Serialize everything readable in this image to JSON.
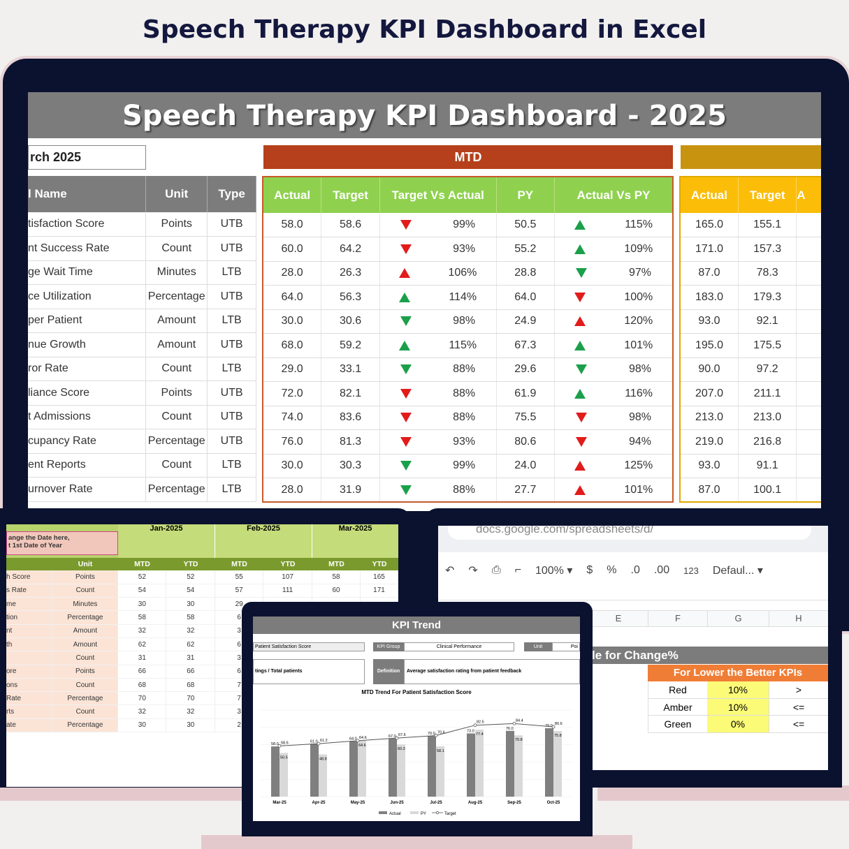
{
  "header": {
    "title": "Speech Therapy KPI Dashboard in Excel"
  },
  "dashboard": {
    "banner": "Speech Therapy KPI Dashboard - 2025",
    "month": "rch 2025",
    "mtd_label": "MTD",
    "left_headers": [
      "l Name",
      "Unit",
      "Type"
    ],
    "mtd_headers": [
      "Actual",
      "Target",
      "Target Vs Actual",
      "PY",
      "Actual Vs PY"
    ],
    "ytd_headers": [
      "Actual",
      "Target",
      "A"
    ],
    "rows": [
      {
        "name": "tisfaction Score",
        "unit": "Points",
        "type": "UTB",
        "actual": "58.0",
        "target": "58.6",
        "tva_dir": "dn-r",
        "tva": "99%",
        "py": "50.5",
        "avp_dir": "up-g",
        "avp": "115%",
        "y_actual": "165.0",
        "y_target": "155.1"
      },
      {
        "name": "nt Success Rate",
        "unit": "Count",
        "type": "UTB",
        "actual": "60.0",
        "target": "64.2",
        "tva_dir": "dn-r",
        "tva": "93%",
        "py": "55.2",
        "avp_dir": "up-g",
        "avp": "109%",
        "y_actual": "171.0",
        "y_target": "157.3"
      },
      {
        "name": "ge Wait Time",
        "unit": "Minutes",
        "type": "LTB",
        "actual": "28.0",
        "target": "26.3",
        "tva_dir": "up-r",
        "tva": "106%",
        "py": "28.8",
        "avp_dir": "dn-g",
        "avp": "97%",
        "y_actual": "87.0",
        "y_target": "78.3"
      },
      {
        "name": "ce Utilization",
        "unit": "Percentage",
        "type": "UTB",
        "actual": "64.0",
        "target": "56.3",
        "tva_dir": "up-g",
        "tva": "114%",
        "py": "64.0",
        "avp_dir": "dn-r",
        "avp": "100%",
        "y_actual": "183.0",
        "y_target": "179.3"
      },
      {
        "name": "per Patient",
        "unit": "Amount",
        "type": "LTB",
        "actual": "30.0",
        "target": "30.6",
        "tva_dir": "dn-g",
        "tva": "98%",
        "py": "24.9",
        "avp_dir": "up-r",
        "avp": "120%",
        "y_actual": "93.0",
        "y_target": "92.1"
      },
      {
        "name": "nue Growth",
        "unit": "Amount",
        "type": "UTB",
        "actual": "68.0",
        "target": "59.2",
        "tva_dir": "up-g",
        "tva": "115%",
        "py": "67.3",
        "avp_dir": "up-g",
        "avp": "101%",
        "y_actual": "195.0",
        "y_target": "175.5"
      },
      {
        "name": "ror Rate",
        "unit": "Count",
        "type": "LTB",
        "actual": "29.0",
        "target": "33.1",
        "tva_dir": "dn-g",
        "tva": "88%",
        "py": "29.6",
        "avp_dir": "dn-g",
        "avp": "98%",
        "y_actual": "90.0",
        "y_target": "97.2"
      },
      {
        "name": "liance Score",
        "unit": "Points",
        "type": "UTB",
        "actual": "72.0",
        "target": "82.1",
        "tva_dir": "dn-r",
        "tva": "88%",
        "py": "61.9",
        "avp_dir": "up-g",
        "avp": "116%",
        "y_actual": "207.0",
        "y_target": "211.1"
      },
      {
        "name": "t Admissions",
        "unit": "Count",
        "type": "UTB",
        "actual": "74.0",
        "target": "83.6",
        "tva_dir": "dn-r",
        "tva": "88%",
        "py": "75.5",
        "avp_dir": "dn-r",
        "avp": "98%",
        "y_actual": "213.0",
        "y_target": "213.0"
      },
      {
        "name": "cupancy Rate",
        "unit": "Percentage",
        "type": "UTB",
        "actual": "76.0",
        "target": "81.3",
        "tva_dir": "dn-r",
        "tva": "93%",
        "py": "80.6",
        "avp_dir": "dn-r",
        "avp": "94%",
        "y_actual": "219.0",
        "y_target": "216.8"
      },
      {
        "name": "ent Reports",
        "unit": "Count",
        "type": "LTB",
        "actual": "30.0",
        "target": "30.3",
        "tva_dir": "dn-g",
        "tva": "99%",
        "py": "24.0",
        "avp_dir": "up-r",
        "avp": "125%",
        "y_actual": "93.0",
        "y_target": "91.1"
      },
      {
        "name": "urnover Rate",
        "unit": "Percentage",
        "type": "LTB",
        "actual": "28.0",
        "target": "31.9",
        "tva_dir": "dn-g",
        "tva": "88%",
        "py": "27.7",
        "avp_dir": "up-r",
        "avp": "101%",
        "y_actual": "87.0",
        "y_target": "100.1"
      }
    ]
  },
  "sheet": {
    "callout": "ange the Date here,\nt 1st Date of Year",
    "unit_header": "Unit",
    "months": [
      "Jan-2025",
      "Feb-2025",
      "Mar-2025"
    ],
    "sub": [
      "MTD",
      "YTD",
      "MTD",
      "YTD",
      "MTD",
      "YTD"
    ],
    "rows": [
      [
        "h Score",
        "Points",
        "52",
        "52",
        "55",
        "107",
        "58",
        "165"
      ],
      [
        "s Rate",
        "Count",
        "54",
        "54",
        "57",
        "111",
        "60",
        "171"
      ],
      [
        "me",
        "Minutes",
        "30",
        "30",
        "29",
        "",
        "",
        ""
      ],
      [
        "tion",
        "Percentage",
        "58",
        "58",
        "6",
        "",
        "",
        ""
      ],
      [
        "nt",
        "Amount",
        "32",
        "32",
        "3",
        "",
        "",
        ""
      ],
      [
        "th",
        "Amount",
        "62",
        "62",
        "6",
        "",
        "",
        ""
      ],
      [
        "",
        "Count",
        "31",
        "31",
        "3",
        "",
        "",
        ""
      ],
      [
        "ore",
        "Points",
        "66",
        "66",
        "6",
        "",
        "",
        ""
      ],
      [
        "ons",
        "Count",
        "68",
        "68",
        "7",
        "",
        "",
        ""
      ],
      [
        "Rate",
        "Percentage",
        "70",
        "70",
        "7",
        "",
        "",
        ""
      ],
      [
        "rts",
        "Count",
        "32",
        "32",
        "3",
        "",
        "",
        ""
      ],
      [
        "ate",
        "Percentage",
        "30",
        "30",
        "2",
        "",
        "",
        ""
      ]
    ]
  },
  "gsheet": {
    "url": "docs.google.com/spreadsheets/d/",
    "zoom": "100%",
    "currency": "$",
    "percent": "%",
    "dec_less": ".0",
    "dec_more": ".00",
    "num": "123",
    "font": "Defaul...",
    "cols": [
      "E",
      "F",
      "G",
      "H"
    ],
    "rule_title": "le for Change%",
    "ltb_header": "For Lower the Better KPIs",
    "rules": [
      [
        "Red",
        "10%",
        ">"
      ],
      [
        "Amber",
        "10%",
        "<="
      ],
      [
        "Green",
        "0%",
        "<="
      ]
    ]
  },
  "trend": {
    "title": "KPI Trend",
    "kpi_name": "Patient Satisfaction Score",
    "kpi_group_label": "KPI Group",
    "kpi_group": "Clinical Performance",
    "unit_label": "Unit",
    "unit": "Poi",
    "formula": "tings / Total patients",
    "definition_label": "Definition",
    "definition": "Average satisfaction rating from patient feedback",
    "legend": [
      "Actual",
      "PY",
      "Target"
    ]
  },
  "chart_data": {
    "type": "bar",
    "title": "MTD Trend For Patient Satisfaction Score",
    "categories": [
      "Mar-25",
      "Apr-25",
      "May-25",
      "Jun-25",
      "Jul-25",
      "Aug-25",
      "Sep-25",
      "Oct-25"
    ],
    "series": [
      {
        "name": "Actual",
        "values": [
          58.0,
          61.0,
          64.0,
          67.0,
          70.0,
          73.0,
          76.0,
          79.0
        ]
      },
      {
        "name": "PY",
        "values": [
          50.5,
          48.8,
          64.6,
          60.3,
          58.1,
          77.4,
          70.8,
          75.8
        ]
      },
      {
        "name": "Target",
        "values": [
          58.6,
          61.2,
          64.6,
          67.6,
          70.6,
          82.5,
          84.4,
          80.6
        ]
      }
    ],
    "colors": {
      "Actual": "#7f7f7f",
      "PY": "#d9d9d9",
      "Target": "#555555"
    }
  }
}
